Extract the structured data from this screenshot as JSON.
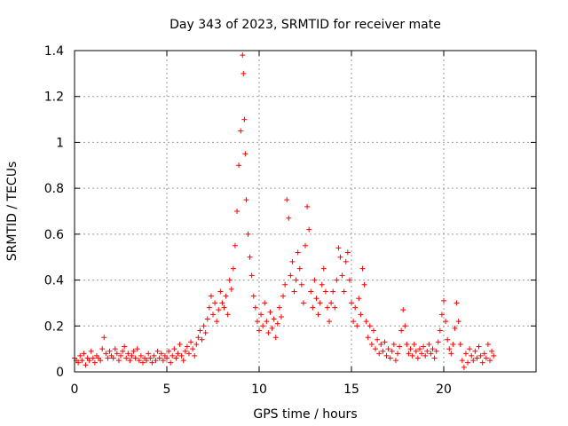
{
  "chart_data": {
    "type": "scatter",
    "title": "Day 343 of 2023, SRMTID for receiver mate",
    "xlabel": "GPS time / hours",
    "ylabel": "SRMTID / TECUs",
    "xlim": [
      0,
      25
    ],
    "ylim": [
      0,
      1.4
    ],
    "grid": true,
    "marker": "+",
    "color": "#ff0000",
    "x_ticks": [
      {
        "value": 0,
        "label": "0"
      },
      {
        "value": 5,
        "label": "5"
      },
      {
        "value": 10,
        "label": "10"
      },
      {
        "value": 15,
        "label": "15"
      },
      {
        "value": 20,
        "label": "20"
      }
    ],
    "y_ticks": [
      {
        "value": 0,
        "label": "0"
      },
      {
        "value": 0.2,
        "label": "0.2"
      },
      {
        "value": 0.4,
        "label": "0.4"
      },
      {
        "value": 0.6,
        "label": "0.6"
      },
      {
        "value": 0.8,
        "label": "0.8"
      },
      {
        "value": 1,
        "label": "1"
      },
      {
        "value": 1.2,
        "label": "1.2"
      },
      {
        "value": 1.4,
        "label": "1.4"
      }
    ],
    "series": [
      {
        "name": "SRMTID",
        "points": [
          [
            0.0,
            0.06
          ],
          [
            0.1,
            0.05
          ],
          [
            0.2,
            0.04
          ],
          [
            0.3,
            0.07
          ],
          [
            0.4,
            0.05
          ],
          [
            0.5,
            0.08
          ],
          [
            0.6,
            0.03
          ],
          [
            0.7,
            0.06
          ],
          [
            0.8,
            0.05
          ],
          [
            0.9,
            0.09
          ],
          [
            1.0,
            0.06
          ],
          [
            1.1,
            0.04
          ],
          [
            1.2,
            0.07
          ],
          [
            1.3,
            0.06
          ],
          [
            1.4,
            0.05
          ],
          [
            1.5,
            0.1
          ],
          [
            1.6,
            0.15
          ],
          [
            1.7,
            0.08
          ],
          [
            1.8,
            0.06
          ],
          [
            1.9,
            0.09
          ],
          [
            2.0,
            0.07
          ],
          [
            2.1,
            0.06
          ],
          [
            2.2,
            0.1
          ],
          [
            2.3,
            0.08
          ],
          [
            2.4,
            0.05
          ],
          [
            2.5,
            0.07
          ],
          [
            2.6,
            0.09
          ],
          [
            2.7,
            0.11
          ],
          [
            2.8,
            0.06
          ],
          [
            2.9,
            0.08
          ],
          [
            3.0,
            0.05
          ],
          [
            3.1,
            0.07
          ],
          [
            3.2,
            0.09
          ],
          [
            3.3,
            0.06
          ],
          [
            3.4,
            0.1
          ],
          [
            3.5,
            0.05
          ],
          [
            3.6,
            0.07
          ],
          [
            3.7,
            0.04
          ],
          [
            3.8,
            0.06
          ],
          [
            3.9,
            0.05
          ],
          [
            4.0,
            0.08
          ],
          [
            4.1,
            0.06
          ],
          [
            4.2,
            0.04
          ],
          [
            4.3,
            0.07
          ],
          [
            4.4,
            0.05
          ],
          [
            4.5,
            0.09
          ],
          [
            4.6,
            0.06
          ],
          [
            4.7,
            0.08
          ],
          [
            4.8,
            0.05
          ],
          [
            4.9,
            0.07
          ],
          [
            5.0,
            0.06
          ],
          [
            5.1,
            0.09
          ],
          [
            5.2,
            0.04
          ],
          [
            5.3,
            0.07
          ],
          [
            5.4,
            0.1
          ],
          [
            5.5,
            0.06
          ],
          [
            5.6,
            0.08
          ],
          [
            5.7,
            0.12
          ],
          [
            5.8,
            0.07
          ],
          [
            5.9,
            0.05
          ],
          [
            6.0,
            0.09
          ],
          [
            6.1,
            0.11
          ],
          [
            6.2,
            0.08
          ],
          [
            6.3,
            0.13
          ],
          [
            6.4,
            0.1
          ],
          [
            6.5,
            0.07
          ],
          [
            6.6,
            0.12
          ],
          [
            6.7,
            0.15
          ],
          [
            6.8,
            0.18
          ],
          [
            6.9,
            0.14
          ],
          [
            7.0,
            0.2
          ],
          [
            7.1,
            0.17
          ],
          [
            7.2,
            0.23
          ],
          [
            7.3,
            0.28
          ],
          [
            7.4,
            0.33
          ],
          [
            7.5,
            0.25
          ],
          [
            7.6,
            0.3
          ],
          [
            7.7,
            0.22
          ],
          [
            7.8,
            0.27
          ],
          [
            7.9,
            0.35
          ],
          [
            8.0,
            0.3
          ],
          [
            8.1,
            0.28
          ],
          [
            8.2,
            0.33
          ],
          [
            8.3,
            0.25
          ],
          [
            8.4,
            0.4
          ],
          [
            8.5,
            0.36
          ],
          [
            8.6,
            0.45
          ],
          [
            8.7,
            0.55
          ],
          [
            8.8,
            0.7
          ],
          [
            8.9,
            0.9
          ],
          [
            9.0,
            1.05
          ],
          [
            9.1,
            1.38
          ],
          [
            9.15,
            1.3
          ],
          [
            9.2,
            1.1
          ],
          [
            9.25,
            0.95
          ],
          [
            9.3,
            0.75
          ],
          [
            9.4,
            0.6
          ],
          [
            9.5,
            0.5
          ],
          [
            9.6,
            0.42
          ],
          [
            9.7,
            0.33
          ],
          [
            9.8,
            0.28
          ],
          [
            9.9,
            0.22
          ],
          [
            10.0,
            0.18
          ],
          [
            10.1,
            0.25
          ],
          [
            10.2,
            0.2
          ],
          [
            10.3,
            0.3
          ],
          [
            10.4,
            0.22
          ],
          [
            10.5,
            0.17
          ],
          [
            10.6,
            0.26
          ],
          [
            10.7,
            0.19
          ],
          [
            10.8,
            0.23
          ],
          [
            10.9,
            0.15
          ],
          [
            11.0,
            0.21
          ],
          [
            11.1,
            0.28
          ],
          [
            11.2,
            0.24
          ],
          [
            11.3,
            0.33
          ],
          [
            11.4,
            0.38
          ],
          [
            11.5,
            0.75
          ],
          [
            11.6,
            0.67
          ],
          [
            11.7,
            0.42
          ],
          [
            11.8,
            0.48
          ],
          [
            11.9,
            0.35
          ],
          [
            12.0,
            0.4
          ],
          [
            12.1,
            0.52
          ],
          [
            12.2,
            0.45
          ],
          [
            12.3,
            0.38
          ],
          [
            12.4,
            0.3
          ],
          [
            12.5,
            0.55
          ],
          [
            12.6,
            0.72
          ],
          [
            12.7,
            0.62
          ],
          [
            12.8,
            0.35
          ],
          [
            12.9,
            0.28
          ],
          [
            13.0,
            0.4
          ],
          [
            13.1,
            0.32
          ],
          [
            13.2,
            0.25
          ],
          [
            13.3,
            0.3
          ],
          [
            13.4,
            0.38
          ],
          [
            13.5,
            0.45
          ],
          [
            13.6,
            0.35
          ],
          [
            13.7,
            0.28
          ],
          [
            13.8,
            0.22
          ],
          [
            13.9,
            0.3
          ],
          [
            14.0,
            0.35
          ],
          [
            14.1,
            0.28
          ],
          [
            14.2,
            0.4
          ],
          [
            14.3,
            0.54
          ],
          [
            14.4,
            0.5
          ],
          [
            14.5,
            0.42
          ],
          [
            14.6,
            0.35
          ],
          [
            14.7,
            0.48
          ],
          [
            14.8,
            0.52
          ],
          [
            14.9,
            0.4
          ],
          [
            15.0,
            0.3
          ],
          [
            15.1,
            0.22
          ],
          [
            15.2,
            0.28
          ],
          [
            15.3,
            0.2
          ],
          [
            15.4,
            0.32
          ],
          [
            15.5,
            0.25
          ],
          [
            15.6,
            0.45
          ],
          [
            15.7,
            0.38
          ],
          [
            15.8,
            0.22
          ],
          [
            15.9,
            0.15
          ],
          [
            16.0,
            0.2
          ],
          [
            16.1,
            0.12
          ],
          [
            16.2,
            0.18
          ],
          [
            16.3,
            0.1
          ],
          [
            16.4,
            0.14
          ],
          [
            16.5,
            0.08
          ],
          [
            16.6,
            0.12
          ],
          [
            16.7,
            0.09
          ],
          [
            16.8,
            0.13
          ],
          [
            16.9,
            0.07
          ],
          [
            17.0,
            0.1
          ],
          [
            17.1,
            0.06
          ],
          [
            17.2,
            0.09
          ],
          [
            17.3,
            0.12
          ],
          [
            17.4,
            0.05
          ],
          [
            17.5,
            0.08
          ],
          [
            17.6,
            0.11
          ],
          [
            17.7,
            0.18
          ],
          [
            17.8,
            0.27
          ],
          [
            17.9,
            0.2
          ],
          [
            18.0,
            0.12
          ],
          [
            18.1,
            0.08
          ],
          [
            18.2,
            0.1
          ],
          [
            18.3,
            0.07
          ],
          [
            18.4,
            0.12
          ],
          [
            18.5,
            0.09
          ],
          [
            18.6,
            0.06
          ],
          [
            18.7,
            0.1
          ],
          [
            18.8,
            0.08
          ],
          [
            18.9,
            0.11
          ],
          [
            19.0,
            0.07
          ],
          [
            19.1,
            0.09
          ],
          [
            19.2,
            0.12
          ],
          [
            19.3,
            0.08
          ],
          [
            19.4,
            0.1
          ],
          [
            19.5,
            0.06
          ],
          [
            19.6,
            0.09
          ],
          [
            19.7,
            0.13
          ],
          [
            19.8,
            0.18
          ],
          [
            19.9,
            0.25
          ],
          [
            20.0,
            0.31
          ],
          [
            20.1,
            0.22
          ],
          [
            20.2,
            0.14
          ],
          [
            20.3,
            0.1
          ],
          [
            20.4,
            0.08
          ],
          [
            20.5,
            0.12
          ],
          [
            20.6,
            0.19
          ],
          [
            20.7,
            0.3
          ],
          [
            20.8,
            0.22
          ],
          [
            20.9,
            0.12
          ],
          [
            21.0,
            0.05
          ],
          [
            21.1,
            0.02
          ],
          [
            21.2,
            0.08
          ],
          [
            21.3,
            0.04
          ],
          [
            21.4,
            0.1
          ],
          [
            21.5,
            0.07
          ],
          [
            21.6,
            0.05
          ],
          [
            21.7,
            0.09
          ],
          [
            21.8,
            0.06
          ],
          [
            21.9,
            0.11
          ],
          [
            22.0,
            0.07
          ],
          [
            22.1,
            0.04
          ],
          [
            22.2,
            0.08
          ],
          [
            22.3,
            0.06
          ],
          [
            22.4,
            0.12
          ],
          [
            22.5,
            0.05
          ],
          [
            22.6,
            0.09
          ],
          [
            22.7,
            0.07
          ]
        ]
      }
    ]
  }
}
